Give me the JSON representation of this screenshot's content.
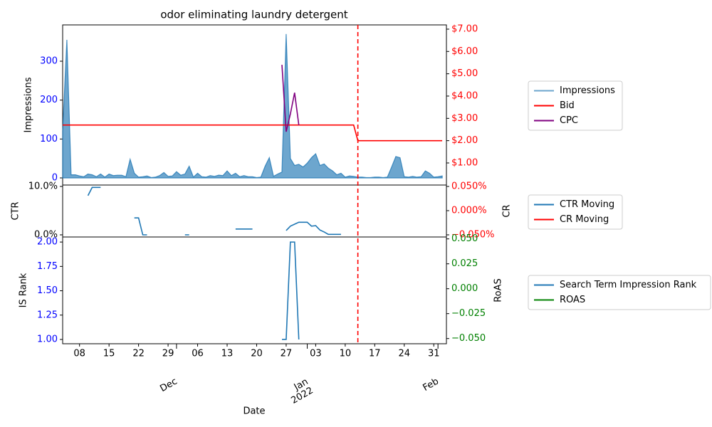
{
  "chart_data": {
    "type": "line",
    "title": "odor eliminating laundry detergent",
    "xlabel": "Date",
    "xlim": [
      "2021-11-04",
      "2022-02-03"
    ],
    "xticks": [
      {
        "value": "2021-11-08",
        "label": "08"
      },
      {
        "value": "2021-11-15",
        "label": "15"
      },
      {
        "value": "2021-11-22",
        "label": "22"
      },
      {
        "value": "2021-11-29",
        "label": "29"
      },
      {
        "value": "2021-12-06",
        "label": "06"
      },
      {
        "value": "2021-12-13",
        "label": "13"
      },
      {
        "value": "2021-12-20",
        "label": "20"
      },
      {
        "value": "2021-12-27",
        "label": "27"
      },
      {
        "value": "2022-01-03",
        "label": "03"
      },
      {
        "value": "2022-01-10",
        "label": "10"
      },
      {
        "value": "2022-01-17",
        "label": "17"
      },
      {
        "value": "2022-01-24",
        "label": "24"
      },
      {
        "value": "2022-01-31",
        "label": "31"
      }
    ],
    "xticks_major": [
      {
        "value": "2021-12-01",
        "label": "Dec"
      },
      {
        "value": "2022-01-01",
        "label": "Jan\n2022"
      },
      {
        "value": "2022-02-01",
        "label": "Feb"
      }
    ],
    "vline": "2022-01-13",
    "vline_color": "red",
    "x": [
      "2021-11-04",
      "2021-11-05",
      "2021-11-06",
      "2021-11-07",
      "2021-11-08",
      "2021-11-09",
      "2021-11-10",
      "2021-11-11",
      "2021-11-12",
      "2021-11-13",
      "2021-11-14",
      "2021-11-15",
      "2021-11-16",
      "2021-11-17",
      "2021-11-18",
      "2021-11-19",
      "2021-11-20",
      "2021-11-21",
      "2021-11-22",
      "2021-11-23",
      "2021-11-24",
      "2021-11-25",
      "2021-11-26",
      "2021-11-27",
      "2021-11-28",
      "2021-11-29",
      "2021-11-30",
      "2021-12-01",
      "2021-12-02",
      "2021-12-03",
      "2021-12-04",
      "2021-12-05",
      "2021-12-06",
      "2021-12-07",
      "2021-12-08",
      "2021-12-09",
      "2021-12-10",
      "2021-12-11",
      "2021-12-12",
      "2021-12-13",
      "2021-12-14",
      "2021-12-15",
      "2021-12-16",
      "2021-12-17",
      "2021-12-18",
      "2021-12-19",
      "2021-12-20",
      "2021-12-21",
      "2021-12-22",
      "2021-12-23",
      "2021-12-24",
      "2021-12-25",
      "2021-12-26",
      "2021-12-27",
      "2021-12-28",
      "2021-12-29",
      "2021-12-30",
      "2021-12-31",
      "2022-01-01",
      "2022-01-02",
      "2022-01-03",
      "2022-01-04",
      "2022-01-05",
      "2022-01-06",
      "2022-01-07",
      "2022-01-08",
      "2022-01-09",
      "2022-01-10",
      "2022-01-11",
      "2022-01-12",
      "2022-01-13",
      "2022-01-14",
      "2022-01-15",
      "2022-01-16",
      "2022-01-17",
      "2022-01-18",
      "2022-01-19",
      "2022-01-20",
      "2022-01-21",
      "2022-01-22",
      "2022-01-23",
      "2022-01-24",
      "2022-01-25",
      "2022-01-26",
      "2022-01-27",
      "2022-01-28",
      "2022-01-29",
      "2022-01-30",
      "2022-01-31",
      "2022-02-01",
      "2022-02-02"
    ],
    "panels": [
      {
        "type": "area",
        "ylabel": "Impressions",
        "ylim": [
          -18.3,
          393.3
        ],
        "yticks": [
          0,
          100,
          200,
          300
        ],
        "ytick_color": "blue",
        "y2lim": [
          0.01,
          7.19
        ],
        "y2tick_color": "red",
        "y2ticks": [
          {
            "value": 1,
            "label": "$1.00"
          },
          {
            "value": 2,
            "label": "$2.00"
          },
          {
            "value": 3,
            "label": "$3.00"
          },
          {
            "value": 4,
            "label": "$4.00"
          },
          {
            "value": 5,
            "label": "$5.00"
          },
          {
            "value": 6,
            "label": "$6.00"
          },
          {
            "value": 7,
            "label": "$7.00"
          }
        ],
        "series": [
          {
            "name": "Impressions",
            "type": "area",
            "color": "#1f77b4",
            "values": [
              120,
              355,
              8,
              8,
              5,
              3,
              10,
              8,
              3,
              10,
              2,
              10,
              6,
              7,
              7,
              3,
              48,
              12,
              2,
              3,
              5,
              1,
              2,
              6,
              14,
              4,
              5,
              16,
              7,
              10,
              30,
              2,
              12,
              3,
              2,
              6,
              4,
              7,
              6,
              18,
              6,
              12,
              3,
              6,
              3,
              3,
              1,
              2,
              30,
              52,
              4,
              10,
              15,
              370,
              50,
              32,
              35,
              28,
              38,
              52,
              62,
              32,
              36,
              25,
              18,
              8,
              12,
              2,
              5,
              4,
              2,
              2,
              1,
              1,
              2,
              2,
              1,
              2,
              28,
              55,
              52,
              3,
              2,
              4,
              2,
              3,
              18,
              12,
              2,
              3,
              5
            ]
          },
          {
            "name": "Bid",
            "type": "line",
            "axis": "y2",
            "color": "red",
            "values": [
              2.7,
              2.7,
              2.7,
              2.7,
              2.7,
              2.7,
              2.7,
              2.7,
              2.7,
              2.7,
              2.7,
              2.7,
              2.7,
              2.7,
              2.7,
              2.7,
              2.7,
              2.7,
              2.7,
              2.7,
              2.7,
              2.7,
              2.7,
              2.7,
              2.7,
              2.7,
              2.7,
              2.7,
              2.7,
              2.7,
              2.7,
              2.7,
              2.7,
              2.7,
              2.7,
              2.7,
              2.7,
              2.7,
              2.7,
              2.7,
              2.7,
              2.7,
              2.7,
              2.7,
              2.7,
              2.7,
              2.7,
              2.7,
              2.7,
              2.7,
              2.7,
              2.7,
              2.7,
              2.7,
              2.7,
              2.7,
              2.7,
              2.7,
              2.7,
              2.7,
              2.7,
              2.7,
              2.7,
              2.7,
              2.7,
              2.7,
              2.7,
              2.7,
              2.7,
              2.7,
              2,
              2,
              2,
              2,
              2,
              2,
              2,
              2,
              2,
              2,
              2,
              2,
              2,
              2,
              2,
              2,
              2,
              2,
              2,
              2,
              2
            ]
          },
          {
            "name": "CPC",
            "type": "line",
            "axis": "y2",
            "color": "purple",
            "values": [
              null,
              null,
              null,
              null,
              null,
              null,
              null,
              null,
              null,
              null,
              null,
              null,
              null,
              null,
              null,
              null,
              null,
              null,
              null,
              null,
              null,
              null,
              null,
              null,
              null,
              null,
              null,
              null,
              null,
              null,
              null,
              null,
              null,
              null,
              null,
              null,
              null,
              null,
              null,
              null,
              null,
              null,
              null,
              null,
              null,
              null,
              null,
              null,
              null,
              null,
              null,
              null,
              5.4,
              2.4,
              3.2,
              4.15,
              2.7,
              null,
              null,
              null,
              null,
              null,
              null,
              null,
              null,
              null,
              null,
              null,
              null,
              null,
              null,
              null,
              null,
              null,
              null,
              null,
              null,
              null,
              null,
              null,
              null,
              null,
              null,
              null,
              null,
              null,
              null,
              null,
              null,
              null,
              null
            ]
          }
        ]
      },
      {
        "type": "line",
        "ylabel": "CTR",
        "y2label": "CR",
        "ylim": [
          -0.44,
          10.29
        ],
        "ytick_color": "black",
        "yticks": [
          {
            "value": 0,
            "label": "0.0%"
          },
          {
            "value": 10,
            "label": "10.0%"
          }
        ],
        "y2lim": [
          -0.0544,
          0.0529
        ],
        "y2tick_color": "red",
        "y2ticks": [
          {
            "value": -0.05,
            "label": "−0.050%"
          },
          {
            "value": 0,
            "label": "0.000%"
          },
          {
            "value": 0.05,
            "label": "0.050%"
          }
        ],
        "series": [
          {
            "name": "CTR Moving",
            "type": "line",
            "color": "#1f77b4",
            "values": [
              null,
              null,
              null,
              null,
              null,
              null,
              8.1,
              9.8,
              9.8,
              9.8,
              null,
              null,
              null,
              null,
              null,
              null,
              null,
              3.5,
              3.5,
              0,
              0,
              null,
              null,
              null,
              null,
              null,
              null,
              null,
              null,
              0,
              0,
              null,
              null,
              null,
              null,
              null,
              null,
              null,
              null,
              null,
              null,
              1.2,
              1.2,
              1.2,
              1.2,
              1.2,
              null,
              null,
              null,
              null,
              null,
              null,
              null,
              0.9,
              1.8,
              2.2,
              2.6,
              2.6,
              2.6,
              1.8,
              1.9,
              1.0,
              0.6,
              0.1,
              0.1,
              0.1,
              0.1,
              null,
              null,
              null,
              null,
              null,
              null,
              null,
              null,
              null,
              null,
              null,
              null,
              null,
              null,
              null,
              null,
              null,
              null,
              null,
              null,
              null,
              null,
              null,
              null
            ]
          },
          {
            "name": "CR Moving",
            "type": "line",
            "axis": "y2",
            "color": "red",
            "values": [
              null,
              null,
              null,
              null,
              null,
              null,
              null,
              null,
              null,
              null,
              null,
              null,
              null,
              null,
              null,
              null,
              null,
              null,
              null,
              null,
              null,
              null,
              null,
              null,
              null,
              null,
              null,
              null,
              null,
              null,
              null,
              null,
              null,
              null,
              null,
              null,
              null,
              null,
              null,
              null,
              null,
              null,
              null,
              null,
              null,
              null,
              null,
              null,
              null,
              null,
              null,
              null,
              null,
              null,
              null,
              null,
              null,
              null,
              null,
              null,
              null,
              null,
              null,
              null,
              null,
              null,
              null,
              null,
              null,
              null,
              null,
              null,
              null,
              null,
              null,
              null,
              null,
              null,
              null,
              null,
              null,
              null,
              null,
              null,
              null,
              null,
              null,
              null,
              null,
              null,
              null
            ]
          }
        ]
      },
      {
        "type": "line",
        "ylabel": "IS Rank",
        "y2label": "RoAS",
        "ylim": [
          0.956,
          2.052
        ],
        "ytick_color": "blue",
        "yticks": [
          {
            "value": 1,
            "label": "1.00"
          },
          {
            "value": 1.25,
            "label": "1.25"
          },
          {
            "value": 1.5,
            "label": "1.50"
          },
          {
            "value": 1.75,
            "label": "1.75"
          },
          {
            "value": 2,
            "label": "2.00"
          }
        ],
        "y2lim": [
          -0.0552,
          0.0519
        ],
        "y2tick_color": "green",
        "y2ticks": [
          {
            "value": -0.05,
            "label": "−0.050"
          },
          {
            "value": -0.025,
            "label": "−0.025"
          },
          {
            "value": 0,
            "label": "0.000"
          },
          {
            "value": 0.025,
            "label": "0.025"
          },
          {
            "value": 0.05,
            "label": "0.050"
          }
        ],
        "series": [
          {
            "name": "Search Term Impression Rank",
            "type": "line",
            "color": "#1f77b4",
            "values": [
              null,
              null,
              null,
              null,
              null,
              null,
              null,
              null,
              null,
              null,
              null,
              null,
              null,
              null,
              null,
              null,
              null,
              null,
              null,
              null,
              null,
              null,
              null,
              null,
              null,
              null,
              null,
              null,
              null,
              null,
              null,
              null,
              null,
              null,
              null,
              null,
              null,
              null,
              null,
              null,
              null,
              null,
              null,
              null,
              null,
              null,
              null,
              null,
              null,
              null,
              null,
              null,
              1.0,
              1.0,
              2.0,
              2.0,
              1.0,
              null,
              null,
              null,
              null,
              null,
              null,
              null,
              null,
              null,
              null,
              null,
              null,
              null,
              null,
              null,
              null,
              null,
              null,
              null,
              null,
              null,
              null,
              null,
              null,
              null,
              null,
              null,
              null,
              null,
              null,
              null,
              null,
              null,
              null
            ]
          },
          {
            "name": "ROAS",
            "type": "line",
            "axis": "y2",
            "color": "green",
            "values": [
              null,
              null,
              null,
              null,
              null,
              null,
              null,
              null,
              null,
              null,
              null,
              null,
              null,
              null,
              null,
              null,
              null,
              null,
              null,
              null,
              null,
              null,
              null,
              null,
              null,
              null,
              null,
              null,
              null,
              null,
              null,
              null,
              null,
              null,
              null,
              null,
              null,
              null,
              null,
              null,
              null,
              null,
              null,
              null,
              null,
              null,
              null,
              null,
              null,
              null,
              null,
              null,
              null,
              null,
              null,
              null,
              null,
              null,
              null,
              null,
              null,
              null,
              null,
              null,
              null,
              null,
              null,
              null,
              null,
              null,
              null,
              null,
              null,
              null,
              null,
              null,
              null,
              null,
              null,
              null,
              null,
              null,
              null,
              null,
              null,
              null,
              null,
              null,
              null,
              null,
              null
            ]
          }
        ]
      }
    ]
  }
}
